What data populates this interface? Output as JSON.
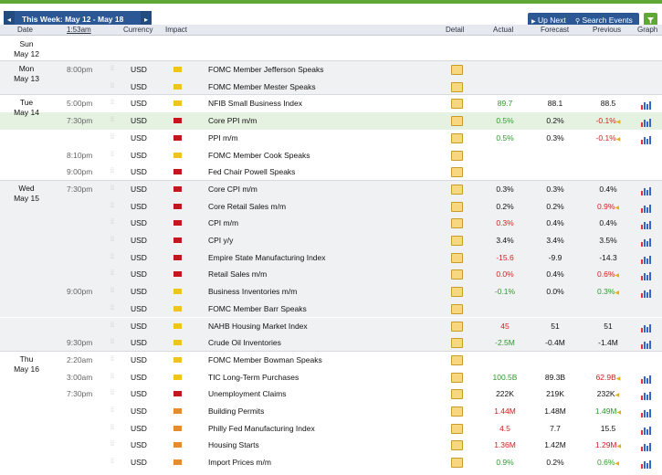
{
  "toolbar": {
    "week_title": "This Week: May 12 - May 18",
    "prev_icon": "◂",
    "next_icon": "▸",
    "up_next": "Up Next",
    "search_events": "Search Events",
    "filter_icon": "filter-icon"
  },
  "header": {
    "date": "Date",
    "time": "1:53am",
    "currency": "Currency",
    "impact": "Impact",
    "detail": "Detail",
    "actual": "Actual",
    "forecast": "Forecast",
    "previous": "Previous",
    "graph": "Graph"
  },
  "days": [
    {
      "dow": "Sun",
      "date": "May 12"
    },
    {
      "dow": "Mon",
      "date": "May 13"
    },
    {
      "dow": "Tue",
      "date": "May 14"
    },
    {
      "dow": "Wed",
      "date": "May 15"
    },
    {
      "dow": "Thu",
      "date": "May 16"
    }
  ],
  "rows": [
    {
      "time": "8:00pm",
      "currency": "USD",
      "impact": "yellow",
      "event": "FOMC Member Jefferson Speaks",
      "actual": "",
      "actual_color": "",
      "forecast": "",
      "previous": "",
      "previous_color": "",
      "revised": false,
      "graph": false
    },
    {
      "time": "",
      "currency": "USD",
      "impact": "yellow",
      "event": "FOMC Member Mester Speaks",
      "actual": "",
      "actual_color": "",
      "forecast": "",
      "previous": "",
      "previous_color": "",
      "revised": false,
      "graph": false
    },
    {
      "time": "5:00pm",
      "currency": "USD",
      "impact": "yellow",
      "event": "NFIB Small Business Index",
      "actual": "89.7",
      "actual_color": "green",
      "forecast": "88.1",
      "previous": "88.5",
      "previous_color": "blk",
      "revised": false,
      "graph": true
    },
    {
      "time": "7:30pm",
      "currency": "USD",
      "impact": "red",
      "event": "Core PPI m/m",
      "actual": "0.5%",
      "actual_color": "green",
      "forecast": "0.2%",
      "previous": "-0.1%",
      "previous_color": "redt",
      "revised": true,
      "graph": true
    },
    {
      "time": "",
      "currency": "USD",
      "impact": "red",
      "event": "PPI m/m",
      "actual": "0.5%",
      "actual_color": "green",
      "forecast": "0.3%",
      "previous": "-0.1%",
      "previous_color": "redt",
      "revised": true,
      "graph": true
    },
    {
      "time": "8:10pm",
      "currency": "USD",
      "impact": "yellow",
      "event": "FOMC Member Cook Speaks",
      "actual": "",
      "actual_color": "",
      "forecast": "",
      "previous": "",
      "previous_color": "",
      "revised": false,
      "graph": false
    },
    {
      "time": "9:00pm",
      "currency": "USD",
      "impact": "red",
      "event": "Fed Chair Powell Speaks",
      "actual": "",
      "actual_color": "",
      "forecast": "",
      "previous": "",
      "previous_color": "",
      "revised": false,
      "graph": false
    },
    {
      "time": "7:30pm",
      "currency": "USD",
      "impact": "red",
      "event": "Core CPI m/m",
      "actual": "0.3%",
      "actual_color": "blk",
      "forecast": "0.3%",
      "previous": "0.4%",
      "previous_color": "blk",
      "revised": false,
      "graph": true
    },
    {
      "time": "",
      "currency": "USD",
      "impact": "red",
      "event": "Core Retail Sales m/m",
      "actual": "0.2%",
      "actual_color": "blk",
      "forecast": "0.2%",
      "previous": "0.9%",
      "previous_color": "redt",
      "revised": true,
      "graph": true
    },
    {
      "time": "",
      "currency": "USD",
      "impact": "red",
      "event": "CPI m/m",
      "actual": "0.3%",
      "actual_color": "redt",
      "forecast": "0.4%",
      "previous": "0.4%",
      "previous_color": "blk",
      "revised": false,
      "graph": true
    },
    {
      "time": "",
      "currency": "USD",
      "impact": "red",
      "event": "CPI y/y",
      "actual": "3.4%",
      "actual_color": "blk",
      "forecast": "3.4%",
      "previous": "3.5%",
      "previous_color": "blk",
      "revised": false,
      "graph": true
    },
    {
      "time": "",
      "currency": "USD",
      "impact": "red",
      "event": "Empire State Manufacturing Index",
      "actual": "-15.6",
      "actual_color": "redt",
      "forecast": "-9.9",
      "previous": "-14.3",
      "previous_color": "blk",
      "revised": false,
      "graph": true
    },
    {
      "time": "",
      "currency": "USD",
      "impact": "red",
      "event": "Retail Sales m/m",
      "actual": "0.0%",
      "actual_color": "redt",
      "forecast": "0.4%",
      "previous": "0.6%",
      "previous_color": "redt",
      "revised": true,
      "graph": true
    },
    {
      "time": "9:00pm",
      "currency": "USD",
      "impact": "yellow",
      "event": "Business Inventories m/m",
      "actual": "-0.1%",
      "actual_color": "green",
      "forecast": "0.0%",
      "previous": "0.3%",
      "previous_color": "green",
      "revised": true,
      "graph": true
    },
    {
      "time": "",
      "currency": "USD",
      "impact": "yellow",
      "event": "FOMC Member Barr Speaks",
      "actual": "",
      "actual_color": "",
      "forecast": "",
      "previous": "",
      "previous_color": "",
      "revised": false,
      "graph": false
    },
    {
      "time": "",
      "currency": "USD",
      "impact": "yellow",
      "event": "NAHB Housing Market Index",
      "actual": "45",
      "actual_color": "redt",
      "forecast": "51",
      "previous": "51",
      "previous_color": "blk",
      "revised": false,
      "graph": true
    },
    {
      "time": "9:30pm",
      "currency": "USD",
      "impact": "yellow",
      "event": "Crude Oil Inventories",
      "actual": "-2.5M",
      "actual_color": "green",
      "forecast": "-0.4M",
      "previous": "-1.4M",
      "previous_color": "blk",
      "revised": false,
      "graph": true
    },
    {
      "time": "2:20am",
      "currency": "USD",
      "impact": "yellow",
      "event": "FOMC Member Bowman Speaks",
      "actual": "",
      "actual_color": "",
      "forecast": "",
      "previous": "",
      "previous_color": "",
      "revised": false,
      "graph": false
    },
    {
      "time": "3:00am",
      "currency": "USD",
      "impact": "yellow",
      "event": "TIC Long-Term Purchases",
      "actual": "100.5B",
      "actual_color": "green",
      "forecast": "89.3B",
      "previous": "62.9B",
      "previous_color": "redt",
      "revised": true,
      "graph": true
    },
    {
      "time": "7:30pm",
      "currency": "USD",
      "impact": "red",
      "event": "Unemployment Claims",
      "actual": "222K",
      "actual_color": "blk",
      "forecast": "219K",
      "previous": "232K",
      "previous_color": "blk",
      "revised": true,
      "graph": true
    },
    {
      "time": "",
      "currency": "USD",
      "impact": "orange",
      "event": "Building Permits",
      "actual": "1.44M",
      "actual_color": "redt",
      "forecast": "1.48M",
      "previous": "1.49M",
      "previous_color": "green",
      "revised": true,
      "graph": true
    },
    {
      "time": "",
      "currency": "USD",
      "impact": "orange",
      "event": "Philly Fed Manufacturing Index",
      "actual": "4.5",
      "actual_color": "redt",
      "forecast": "7.7",
      "previous": "15.5",
      "previous_color": "blk",
      "revised": false,
      "graph": true
    },
    {
      "time": "",
      "currency": "USD",
      "impact": "orange",
      "event": "Housing Starts",
      "actual": "1.36M",
      "actual_color": "redt",
      "forecast": "1.42M",
      "previous": "1.29M",
      "previous_color": "redt",
      "revised": true,
      "graph": true
    },
    {
      "time": "",
      "currency": "USD",
      "impact": "orange",
      "event": "Import Prices m/m",
      "actual": "0.9%",
      "actual_color": "green",
      "forecast": "0.2%",
      "previous": "0.6%",
      "previous_color": "green",
      "revised": true,
      "graph": true
    }
  ]
}
